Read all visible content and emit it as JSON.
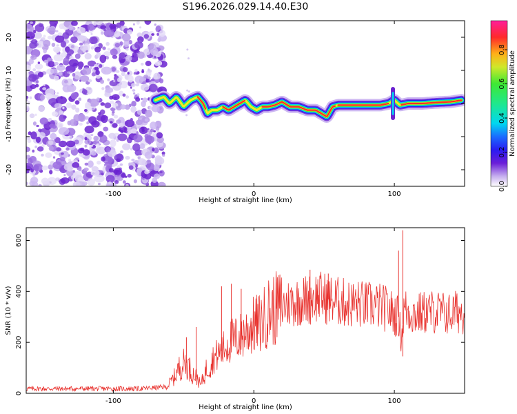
{
  "title": "S196.2026.029.14.40.E30",
  "chart_data": [
    {
      "type": "heatmap",
      "title": "S196.2026.029.14.40.E30",
      "xlabel": "Height of straight line (km)",
      "ylabel": "Frequency (Hz)",
      "xlim": [
        -162,
        150
      ],
      "ylim": [
        -25,
        25
      ],
      "xticks": [
        -100,
        0,
        100
      ],
      "yticks": [
        -20,
        -10,
        0,
        10,
        20
      ],
      "noise_region_x": [
        -162,
        -68
      ],
      "ridge": {
        "x": [
          -70,
          -64,
          -60,
          -55,
          -50,
          -45,
          -40,
          -36,
          -33,
          -30,
          -26,
          -22,
          -18,
          -14,
          -10,
          -6,
          -2,
          2,
          6,
          10,
          15,
          20,
          26,
          32,
          38,
          44,
          48,
          52,
          56,
          60,
          70,
          80,
          90,
          96,
          100,
          104,
          110,
          120,
          130,
          140,
          148
        ],
        "freq": [
          1,
          2,
          0,
          2,
          -1,
          1,
          2,
          0,
          -3,
          -2,
          -2,
          -1,
          -2,
          -1,
          0,
          1,
          -1,
          -2,
          -1,
          -1,
          -0.5,
          0.5,
          -1,
          -1,
          -2,
          -2,
          -3,
          -4,
          -1,
          -0.5,
          -0.5,
          -0.5,
          -0.5,
          0,
          1,
          -0.5,
          0,
          0,
          0.3,
          0.5,
          1
        ]
      },
      "colorbar": {
        "label": "Normalized spectral amplitude",
        "range": [
          0,
          0.97
        ],
        "ticks": [
          "0.0",
          "0.2",
          "0.4",
          "0.6",
          "0.8"
        ],
        "tick_values": [
          0.0,
          0.2,
          0.4,
          0.6,
          0.8
        ]
      }
    },
    {
      "type": "line",
      "xlabel": "Height of straight line (km)",
      "ylabel": "SNR (10 * v/v)",
      "xlim": [
        -162,
        150
      ],
      "ylim": [
        0,
        650
      ],
      "xticks": [
        -100,
        0,
        100
      ],
      "yticks": [
        0,
        200,
        400,
        600
      ],
      "color": "#e8312d",
      "envelope": {
        "x": [
          -162,
          -80,
          -62,
          -57,
          -52,
          -48,
          -44,
          -40,
          -38,
          -34,
          -30,
          -26,
          -22,
          -18,
          -14,
          -10,
          -6,
          -2,
          2,
          6,
          10,
          15,
          20,
          25,
          30,
          35,
          40,
          45,
          50,
          55,
          60,
          65,
          70,
          75,
          80,
          85,
          90,
          95,
          100,
          103,
          105,
          107,
          110,
          115,
          120,
          125,
          130,
          135,
          140,
          145,
          150
        ],
        "y": [
          18,
          18,
          25,
          60,
          110,
          120,
          80,
          60,
          30,
          90,
          130,
          150,
          170,
          200,
          210,
          220,
          240,
          260,
          270,
          280,
          320,
          330,
          340,
          355,
          360,
          365,
          370,
          380,
          375,
          365,
          360,
          355,
          350,
          350,
          345,
          345,
          340,
          330,
          310,
          300,
          210,
          330,
          320,
          310,
          315,
          320,
          320,
          315,
          310,
          320,
          320
        ]
      },
      "spikes": [
        {
          "x": -48,
          "y": 220
        },
        {
          "x": -41,
          "y": 260
        },
        {
          "x": -23,
          "y": 420
        },
        {
          "x": -16,
          "y": 430
        },
        {
          "x": -9,
          "y": 410
        },
        {
          "x": 16,
          "y": 435
        },
        {
          "x": 40,
          "y": 485
        },
        {
          "x": 53,
          "y": 470
        },
        {
          "x": 103,
          "y": 560
        },
        {
          "x": 106,
          "y": 640
        },
        {
          "x": 106,
          "y": 145
        }
      ]
    }
  ]
}
